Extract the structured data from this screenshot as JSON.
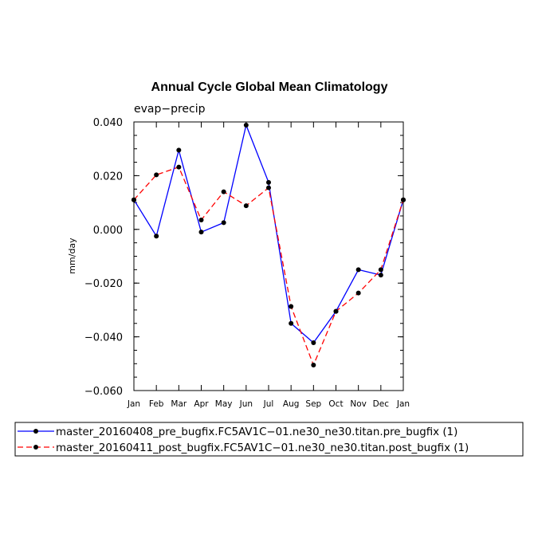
{
  "chart_data": {
    "type": "line",
    "title": "Annual Cycle Global Mean Climatology",
    "subtitle": "evap−precip",
    "xlabel": "",
    "ylabel": "mm/day",
    "categories": [
      "Jan",
      "Feb",
      "Mar",
      "Apr",
      "May",
      "Jun",
      "Jul",
      "Aug",
      "Sep",
      "Oct",
      "Nov",
      "Dec",
      "Jan"
    ],
    "ylim": [
      -0.06,
      0.04
    ],
    "yticks": [
      0.04,
      0.02,
      0.0,
      -0.02,
      -0.04,
      -0.06
    ],
    "ytick_labels": [
      "0.040",
      "0.020",
      "0.000",
      "−0.020",
      "−0.040",
      "−0.060"
    ],
    "grid": false,
    "legend_position": "bottom",
    "series": [
      {
        "name": "master_20160408_pre_bugfix.FC5AV1C−01.ne30_ne30.titan.pre_bugfix (1)",
        "color": "#0000ff",
        "dash": "solid",
        "values": [
          0.011,
          -0.0025,
          0.0295,
          -0.001,
          0.0025,
          0.0388,
          0.0175,
          -0.035,
          -0.0422,
          -0.0305,
          -0.015,
          -0.017,
          0.011
        ]
      },
      {
        "name": "master_20160411_post_bugfix.FC5AV1C−01.ne30_ne30.titan.post_bugfix (1)",
        "color": "#ff0000",
        "dash": "dashed",
        "values": [
          0.011,
          0.0203,
          0.0232,
          0.0035,
          0.014,
          0.0088,
          0.0155,
          -0.0287,
          -0.0505,
          -0.0305,
          -0.0237,
          -0.015,
          0.011
        ]
      }
    ]
  }
}
